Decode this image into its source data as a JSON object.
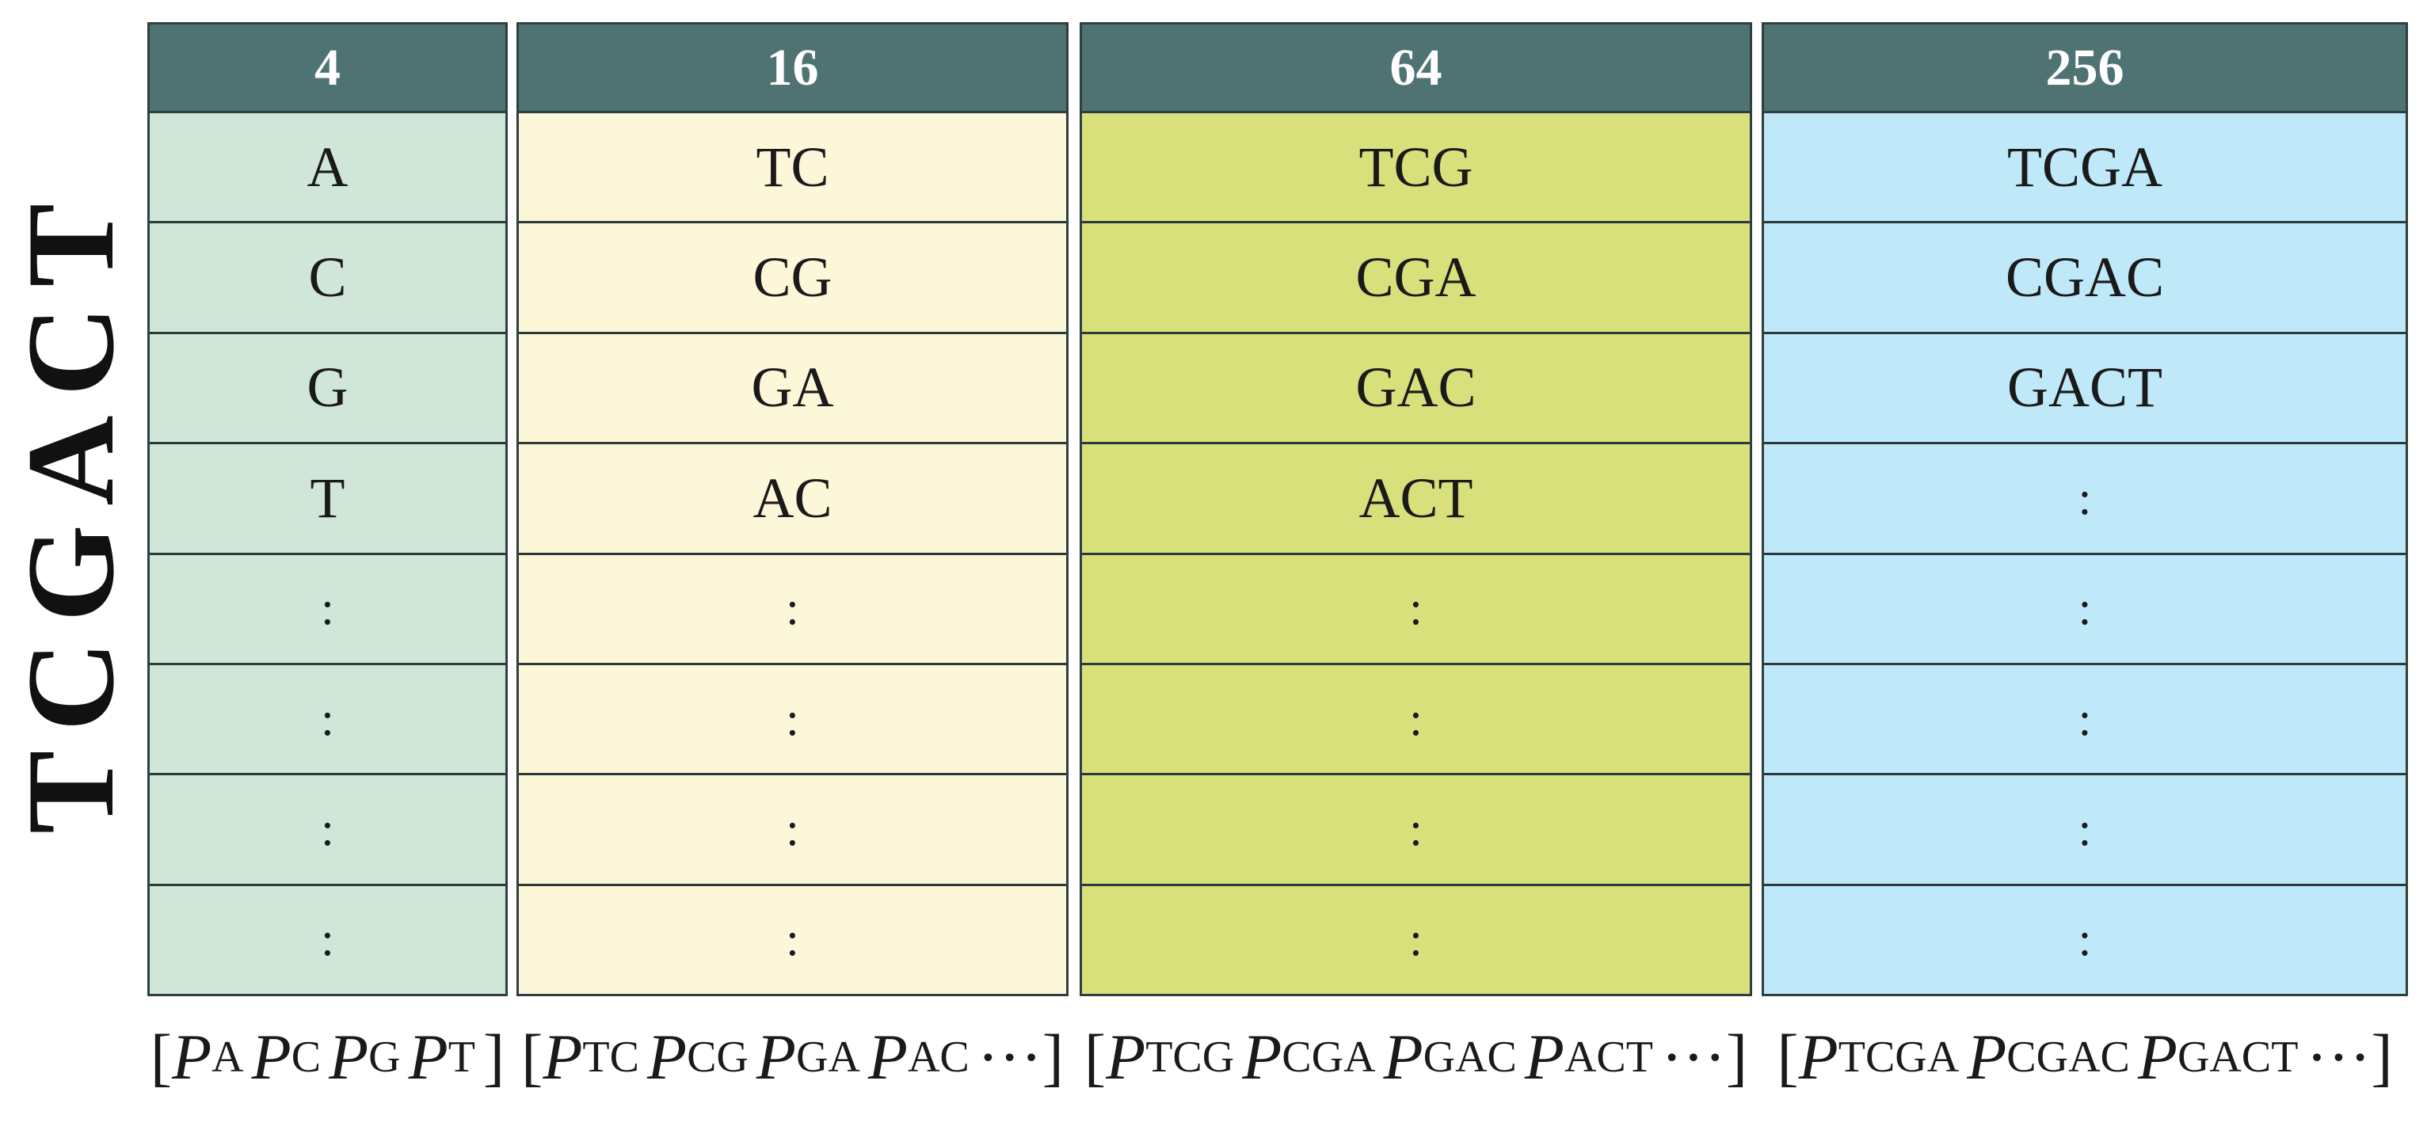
{
  "vertical_sequence": "TCGACT",
  "colors": {
    "header_bg": "#4f7373",
    "col1_bg": "#cfe6d9",
    "col2_bg": "#fdf7d9",
    "col3_bg": "#d8e07c",
    "col4_bg": "#bfe8f8"
  },
  "columns": [
    {
      "header": "4",
      "cells": [
        "A",
        "C",
        "G",
        "T",
        ":",
        ":",
        ":",
        ":"
      ],
      "vector": {
        "open": "[",
        "close": "]",
        "symbol": "P",
        "subscripts": [
          "A",
          "C",
          "G",
          "T"
        ],
        "ellipsis": ""
      }
    },
    {
      "header": "16",
      "cells": [
        "TC",
        "CG",
        "GA",
        "AC",
        ":",
        ":",
        ":",
        ":"
      ],
      "vector": {
        "open": "[",
        "close": "]",
        "symbol": "P",
        "subscripts": [
          "TC",
          "CG",
          "GA",
          "AC"
        ],
        "ellipsis": "···"
      }
    },
    {
      "header": "64",
      "cells": [
        "TCG",
        "CGA",
        "GAC",
        "ACT",
        ":",
        ":",
        ":",
        ":"
      ],
      "vector": {
        "open": "[",
        "close": "]",
        "symbol": "P",
        "subscripts": [
          "TCG",
          "CGA",
          "GAC",
          "ACT"
        ],
        "ellipsis": "···"
      }
    },
    {
      "header": "256",
      "cells": [
        "TCGA",
        "CGAC",
        "GACT",
        ":",
        ":",
        ":",
        ":",
        ":"
      ],
      "vector": {
        "open": "[",
        "close": "]",
        "symbol": "P",
        "subscripts": [
          "TCGA",
          "CGAC",
          "GACT"
        ],
        "ellipsis": "···"
      }
    }
  ]
}
